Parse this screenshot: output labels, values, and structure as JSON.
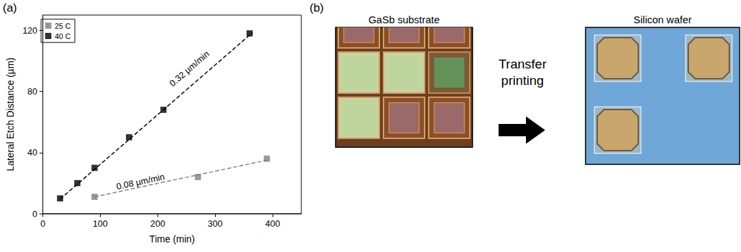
{
  "chart_data": {
    "type": "scatter",
    "panel_label": "(a)",
    "x_label": "Time (min)",
    "y_label": "Lateral Etch Distance (µm)",
    "xlim": [
      0,
      450
    ],
    "xticks": [
      0,
      100,
      200,
      300,
      400
    ],
    "ylim": [
      0,
      130
    ],
    "yticks": [
      0,
      40,
      80,
      120
    ],
    "grid": false,
    "legend": "upper left",
    "series": [
      {
        "name": "25 C",
        "color": "#808080",
        "marker": "square",
        "x": [
          90,
          270,
          390
        ],
        "values": [
          11,
          24,
          36
        ]
      },
      {
        "name": "40 C",
        "color": "#000000",
        "marker": "square",
        "x": [
          30,
          60,
          90,
          150,
          210,
          360
        ],
        "values": [
          10,
          20,
          30,
          50,
          68,
          118
        ]
      }
    ],
    "fit_lines": [
      {
        "type": "line",
        "line_style": "dashed",
        "color": "#000000",
        "x": [
          30,
          365
        ],
        "values": [
          9.5,
          118.5
        ]
      },
      {
        "type": "line",
        "line_style": "dashed",
        "color": "#808080",
        "x": [
          90,
          390
        ],
        "values": [
          11,
          35
        ]
      }
    ],
    "annotations": [
      {
        "text": "0.32 µm/min",
        "x": 255,
        "y": 95
      },
      {
        "text": "0.08 µm/min",
        "x": 170,
        "y": 21
      }
    ]
  },
  "panel_b": {
    "label": "(b)",
    "source_caption": "GaSb substrate",
    "arrow_caption": [
      "Transfer",
      "printing"
    ],
    "target_caption": "Silicon wafer"
  }
}
